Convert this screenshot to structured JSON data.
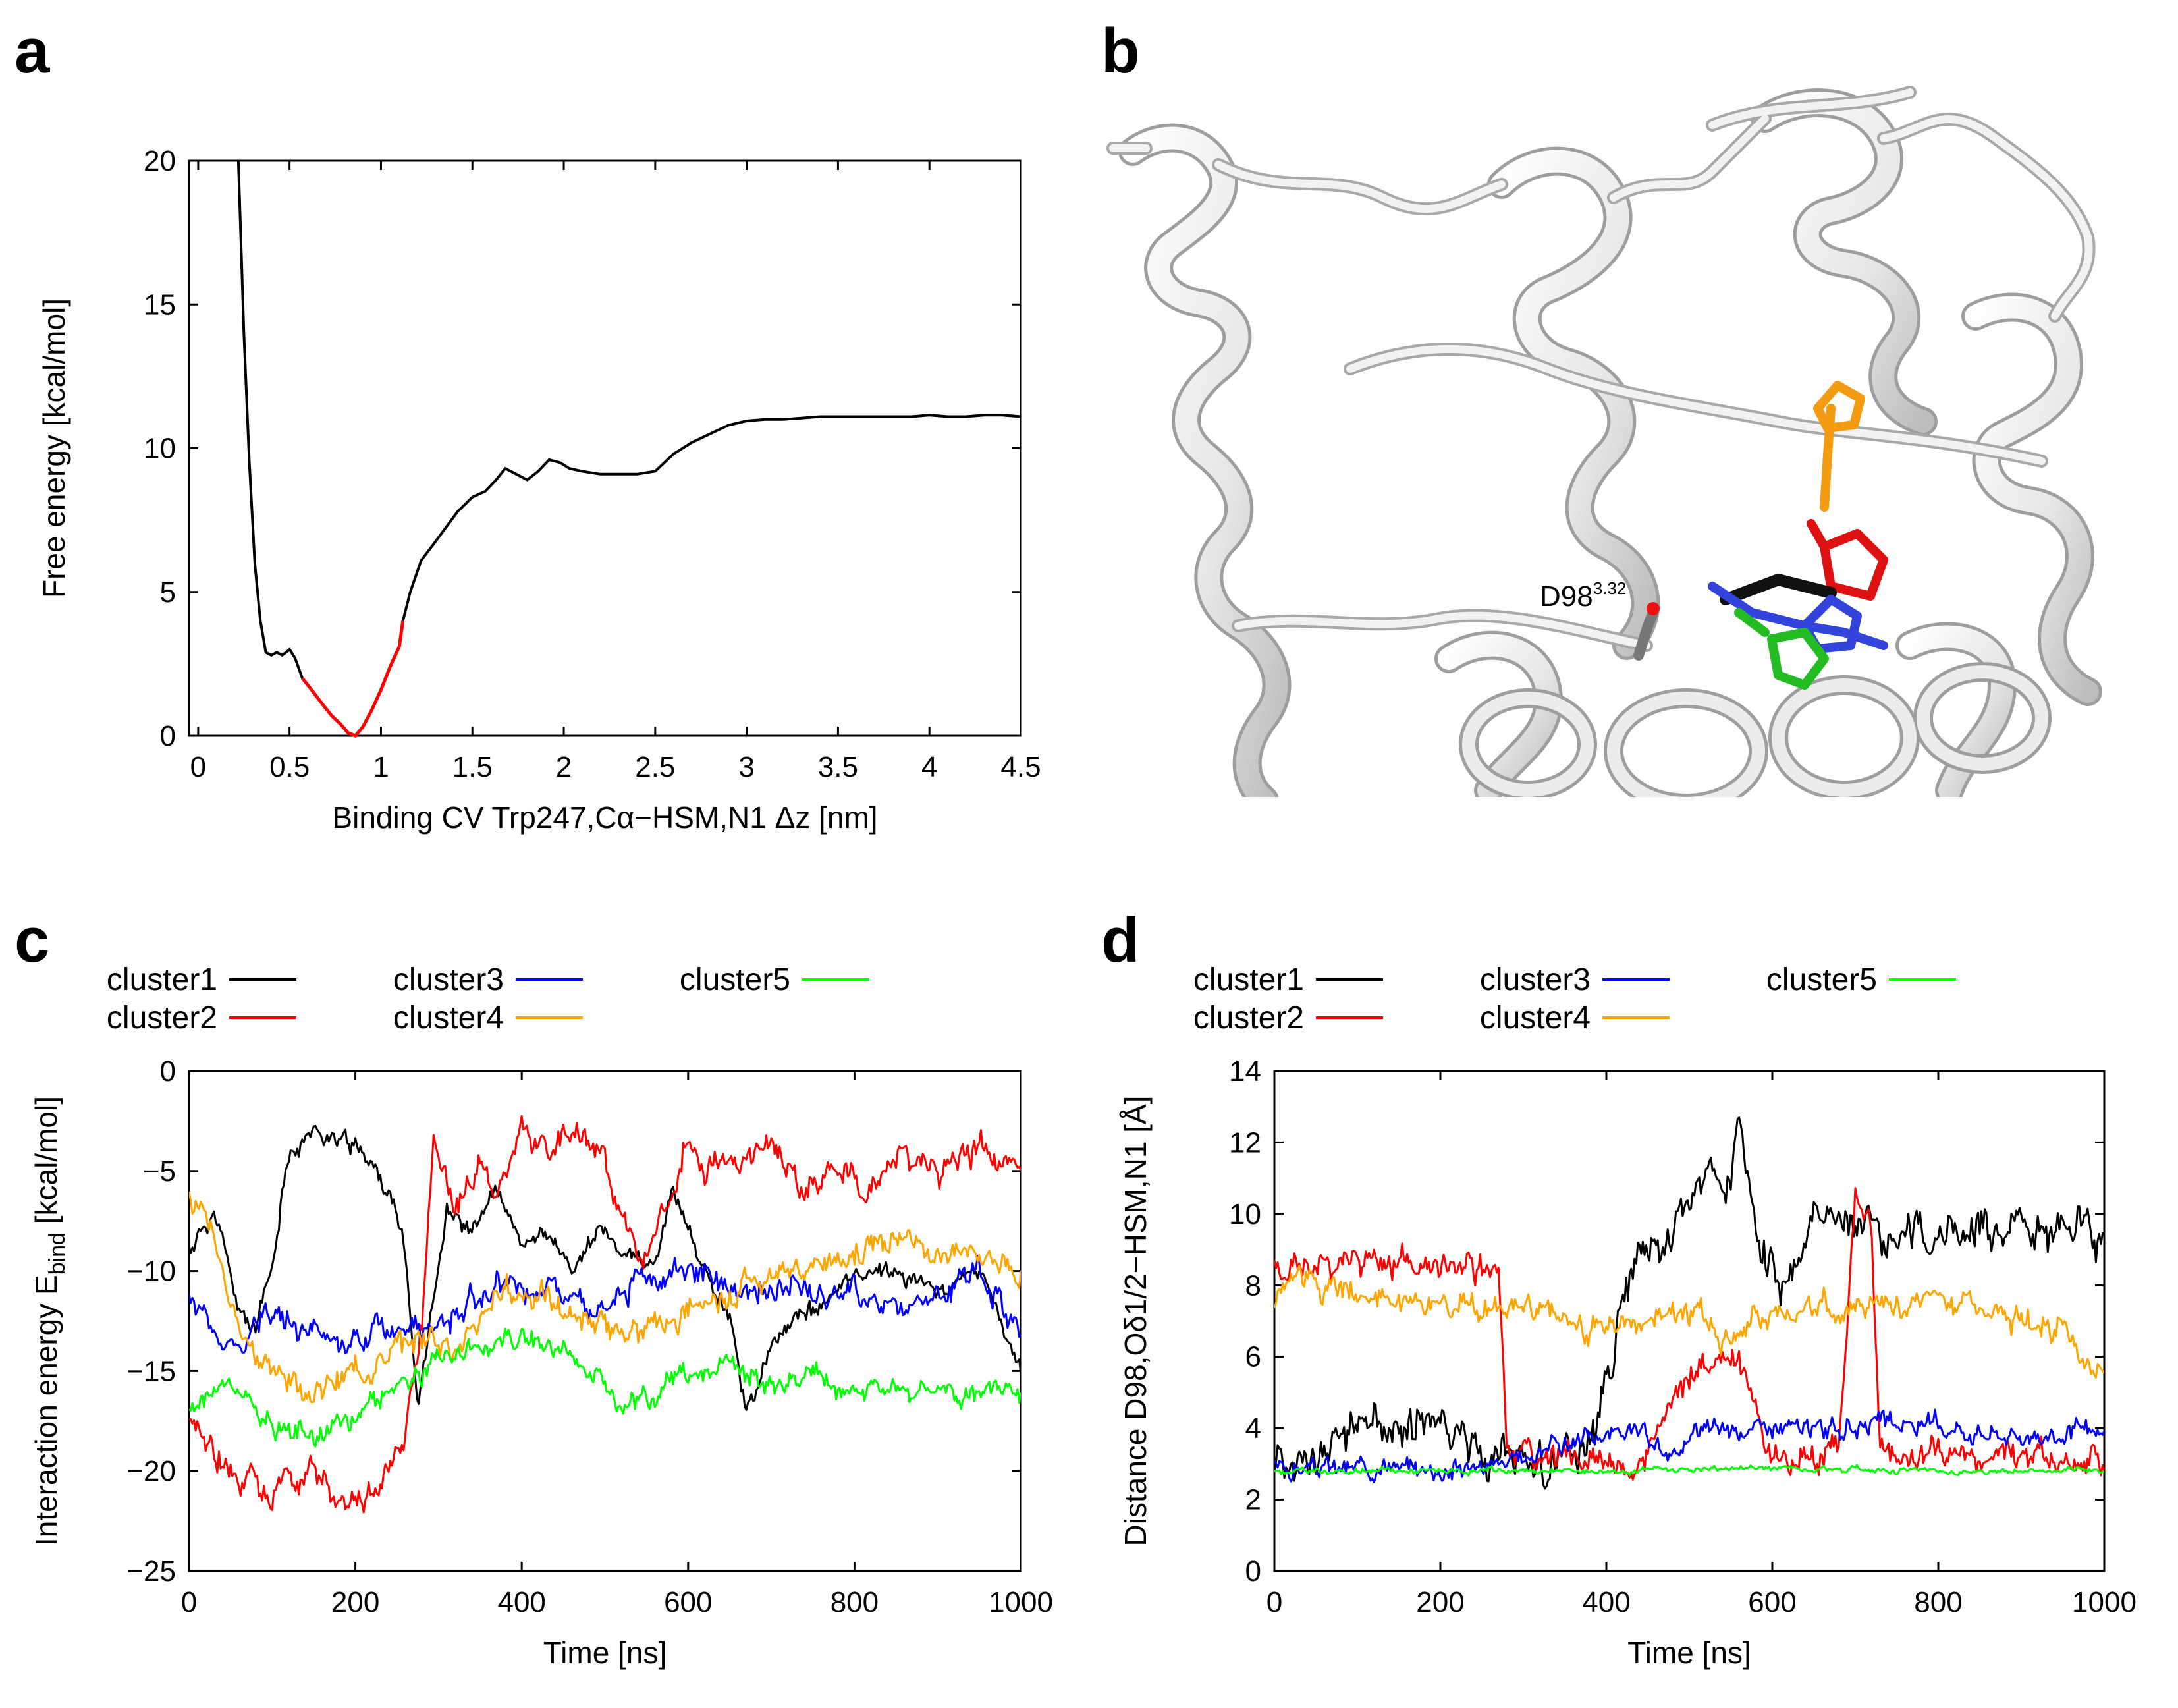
{
  "panels": {
    "a": {
      "letter": "a"
    },
    "b": {
      "letter": "b",
      "label_main": "D98",
      "label_sup": "3.32"
    },
    "c": {
      "letter": "c"
    },
    "d": {
      "letter": "d"
    }
  },
  "chart_data": [
    {
      "id": "a",
      "type": "line",
      "xlabel": "Binding CV Trp247,Cα−HSM,N1 Δz [nm]",
      "ylabel": "Free energy [kcal/mol]",
      "xlim": [
        -0.05,
        4.5
      ],
      "ylim": [
        0,
        20
      ],
      "xticks": [
        "0",
        "0.5",
        "1",
        "1.5",
        "2",
        "2.5",
        "3",
        "3.5",
        "4",
        "4.5"
      ],
      "yticks": [
        "0",
        "5",
        "10",
        "15",
        "20"
      ],
      "colors": {
        "curve": "#000000",
        "highlight": "#ff0000"
      },
      "highlight_range": [
        0.57,
        1.12
      ],
      "x": [
        0.22,
        0.25,
        0.28,
        0.31,
        0.34,
        0.37,
        0.4,
        0.43,
        0.46,
        0.5,
        0.53,
        0.57,
        0.62,
        0.68,
        0.73,
        0.78,
        0.82,
        0.86,
        0.9,
        0.95,
        1.0,
        1.05,
        1.1,
        1.12,
        1.16,
        1.22,
        1.28,
        1.35,
        1.42,
        1.5,
        1.57,
        1.63,
        1.68,
        1.74,
        1.8,
        1.86,
        1.92,
        1.98,
        2.03,
        2.1,
        2.2,
        2.3,
        2.4,
        2.5,
        2.6,
        2.7,
        2.8,
        2.9,
        3.0,
        3.1,
        3.2,
        3.3,
        3.4,
        3.5,
        3.6,
        3.7,
        3.8,
        3.9,
        4.0,
        4.1,
        4.2,
        4.3,
        4.4,
        4.5
      ],
      "y": [
        20.0,
        14.0,
        9.5,
        6.0,
        4.0,
        2.9,
        2.8,
        2.9,
        2.8,
        3.0,
        2.7,
        2.0,
        1.6,
        1.1,
        0.7,
        0.4,
        0.1,
        0.0,
        0.3,
        0.9,
        1.6,
        2.4,
        3.1,
        4.0,
        5.0,
        6.1,
        6.6,
        7.2,
        7.8,
        8.3,
        8.5,
        8.9,
        9.3,
        9.1,
        8.9,
        9.2,
        9.6,
        9.5,
        9.3,
        9.2,
        9.1,
        9.1,
        9.1,
        9.2,
        9.8,
        10.2,
        10.5,
        10.8,
        10.95,
        11.0,
        11.0,
        11.05,
        11.1,
        11.1,
        11.1,
        11.1,
        11.1,
        11.1,
        11.15,
        11.1,
        11.1,
        11.15,
        11.15,
        11.1
      ]
    },
    {
      "id": "c",
      "type": "line",
      "xlabel": "Time [ns]",
      "ylabel": "Interaction energy E",
      "ylabel_sub": "bind",
      "ylabel_unit": " [kcal/mol]",
      "xlim": [
        0,
        1000
      ],
      "ylim": [
        -25,
        0
      ],
      "xticks": [
        "0",
        "200",
        "400",
        "600",
        "800",
        "1000"
      ],
      "yticks": [
        "−25",
        "−20",
        "−15",
        "−10",
        "−5",
        "0"
      ],
      "series": [
        {
          "name": "cluster1",
          "color": "#000000",
          "points": [
            [
              0,
              -9
            ],
            [
              30,
              -7
            ],
            [
              60,
              -12
            ],
            [
              80,
              -13
            ],
            [
              100,
              -10
            ],
            [
              120,
              -4
            ],
            [
              150,
              -3
            ],
            [
              180,
              -3.5
            ],
            [
              210,
              -4
            ],
            [
              240,
              -6
            ],
            [
              260,
              -9
            ],
            [
              275,
              -17
            ],
            [
              290,
              -12
            ],
            [
              310,
              -7
            ],
            [
              340,
              -8
            ],
            [
              370,
              -6
            ],
            [
              400,
              -9
            ],
            [
              430,
              -8
            ],
            [
              460,
              -10
            ],
            [
              490,
              -8
            ],
            [
              520,
              -9
            ],
            [
              560,
              -10
            ],
            [
              580,
              -6
            ],
            [
              600,
              -8
            ],
            [
              620,
              -10
            ],
            [
              650,
              -12
            ],
            [
              670,
              -17
            ],
            [
              700,
              -14
            ],
            [
              730,
              -12
            ],
            [
              760,
              -12
            ],
            [
              800,
              -10
            ],
            [
              850,
              -10
            ],
            [
              900,
              -11
            ],
            [
              950,
              -10
            ],
            [
              1000,
              -15
            ]
          ]
        },
        {
          "name": "cluster2",
          "color": "#ff0000",
          "points": [
            [
              0,
              -18
            ],
            [
              50,
              -20
            ],
            [
              100,
              -21
            ],
            [
              150,
              -20
            ],
            [
              190,
              -22
            ],
            [
              230,
              -21
            ],
            [
              260,
              -18
            ],
            [
              280,
              -13
            ],
            [
              295,
              -3
            ],
            [
              320,
              -7
            ],
            [
              350,
              -5
            ],
            [
              380,
              -6
            ],
            [
              400,
              -3
            ],
            [
              430,
              -4
            ],
            [
              460,
              -3
            ],
            [
              490,
              -4
            ],
            [
              520,
              -8
            ],
            [
              550,
              -9
            ],
            [
              580,
              -6
            ],
            [
              600,
              -3
            ],
            [
              620,
              -5
            ],
            [
              650,
              -4
            ],
            [
              700,
              -4
            ],
            [
              740,
              -6
            ],
            [
              780,
              -5
            ],
            [
              820,
              -6
            ],
            [
              860,
              -4
            ],
            [
              900,
              -5
            ],
            [
              950,
              -4
            ],
            [
              1000,
              -5
            ]
          ]
        },
        {
          "name": "cluster3",
          "color": "#0000ff",
          "points": [
            [
              0,
              -11
            ],
            [
              30,
              -13
            ],
            [
              60,
              -14
            ],
            [
              100,
              -12
            ],
            [
              140,
              -13
            ],
            [
              180,
              -14
            ],
            [
              220,
              -13
            ],
            [
              260,
              -13
            ],
            [
              290,
              -13
            ],
            [
              320,
              -12
            ],
            [
              360,
              -11
            ],
            [
              400,
              -11
            ],
            [
              450,
              -11
            ],
            [
              500,
              -12
            ],
            [
              550,
              -10
            ],
            [
              600,
              -10
            ],
            [
              650,
              -11
            ],
            [
              700,
              -11
            ],
            [
              750,
              -11
            ],
            [
              800,
              -11
            ],
            [
              850,
              -12
            ],
            [
              900,
              -11
            ],
            [
              950,
              -10
            ],
            [
              1000,
              -13
            ]
          ]
        },
        {
          "name": "cluster4",
          "color": "#ffa500",
          "points": [
            [
              0,
              -6
            ],
            [
              30,
              -8
            ],
            [
              60,
              -13
            ],
            [
              100,
              -15
            ],
            [
              150,
              -16
            ],
            [
              200,
              -15
            ],
            [
              250,
              -14
            ],
            [
              290,
              -13
            ],
            [
              330,
              -14
            ],
            [
              370,
              -11
            ],
            [
              410,
              -11
            ],
            [
              450,
              -12
            ],
            [
              500,
              -13
            ],
            [
              550,
              -13
            ],
            [
              600,
              -12
            ],
            [
              650,
              -11
            ],
            [
              700,
              -10
            ],
            [
              750,
              -10
            ],
            [
              800,
              -9
            ],
            [
              850,
              -8
            ],
            [
              900,
              -9
            ],
            [
              950,
              -9
            ],
            [
              1000,
              -10
            ]
          ]
        },
        {
          "name": "cluster5",
          "color": "#00ff00",
          "points": [
            [
              0,
              -17
            ],
            [
              40,
              -16
            ],
            [
              80,
              -17
            ],
            [
              120,
              -18
            ],
            [
              160,
              -18
            ],
            [
              200,
              -17
            ],
            [
              240,
              -16
            ],
            [
              280,
              -15
            ],
            [
              320,
              -14
            ],
            [
              360,
              -14
            ],
            [
              400,
              -13
            ],
            [
              440,
              -14
            ],
            [
              480,
              -15
            ],
            [
              520,
              -17
            ],
            [
              560,
              -16
            ],
            [
              600,
              -15
            ],
            [
              650,
              -15
            ],
            [
              700,
              -16
            ],
            [
              750,
              -15
            ],
            [
              800,
              -16
            ],
            [
              850,
              -16
            ],
            [
              900,
              -16
            ],
            [
              950,
              -16
            ],
            [
              1000,
              -16
            ]
          ]
        }
      ],
      "noise": [
        0.6,
        0.9,
        0.8,
        0.8,
        0.7
      ]
    },
    {
      "id": "d",
      "type": "line",
      "xlabel": "Time [ns]",
      "ylabel": "Distance D98,Oδ1/2−HSM,N1 [Å]",
      "xlim": [
        0,
        1000
      ],
      "ylim": [
        0,
        14
      ],
      "xticks": [
        "0",
        "200",
        "400",
        "600",
        "800",
        "1000"
      ],
      "yticks": [
        "0",
        "2",
        "4",
        "6",
        "8",
        "10",
        "12",
        "14"
      ],
      "series": [
        {
          "name": "cluster1",
          "color": "#000000",
          "points": [
            [
              0,
              3.2
            ],
            [
              60,
              3.2
            ],
            [
              100,
              4.2
            ],
            [
              150,
              4.0
            ],
            [
              200,
              4.2
            ],
            [
              250,
              3.4
            ],
            [
              300,
              3.0
            ],
            [
              380,
              3.0
            ],
            [
              430,
              8.5
            ],
            [
              480,
              9.5
            ],
            [
              520,
              11
            ],
            [
              550,
              11
            ],
            [
              560,
              13
            ],
            [
              580,
              9
            ],
            [
              620,
              8
            ],
            [
              650,
              9.5
            ],
            [
              700,
              10
            ],
            [
              750,
              9.5
            ],
            [
              800,
              9.5
            ],
            [
              850,
              9.5
            ],
            [
              900,
              9.5
            ],
            [
              950,
              9.5
            ],
            [
              1000,
              9.5
            ]
          ]
        },
        {
          "name": "cluster2",
          "color": "#ff0000",
          "points": [
            [
              0,
              8.5
            ],
            [
              50,
              8.5
            ],
            [
              100,
              8.7
            ],
            [
              150,
              8.5
            ],
            [
              200,
              8.6
            ],
            [
              250,
              8.5
            ],
            [
              270,
              8.5
            ],
            [
              280,
              3.5
            ],
            [
              320,
              3.2
            ],
            [
              380,
              3.2
            ],
            [
              440,
              3.0
            ],
            [
              510,
              5.5
            ],
            [
              560,
              6.0
            ],
            [
              600,
              3.2
            ],
            [
              650,
              3.2
            ],
            [
              680,
              3.5
            ],
            [
              700,
              10.5
            ],
            [
              720,
              9.5
            ],
            [
              730,
              3.2
            ],
            [
              800,
              3.2
            ],
            [
              900,
              3.2
            ],
            [
              1000,
              3.0
            ]
          ]
        },
        {
          "name": "cluster3",
          "color": "#0000ff",
          "points": [
            [
              0,
              2.9
            ],
            [
              100,
              2.9
            ],
            [
              200,
              2.9
            ],
            [
              280,
              3.0
            ],
            [
              330,
              3.5
            ],
            [
              380,
              3.8
            ],
            [
              440,
              3.8
            ],
            [
              480,
              3.2
            ],
            [
              520,
              4.0
            ],
            [
              600,
              4.0
            ],
            [
              700,
              4.0
            ],
            [
              800,
              4.1
            ],
            [
              900,
              3.8
            ],
            [
              1000,
              3.8
            ]
          ]
        },
        {
          "name": "cluster4",
          "color": "#ffa500",
          "points": [
            [
              0,
              7.5
            ],
            [
              20,
              8.5
            ],
            [
              50,
              8.0
            ],
            [
              100,
              7.5
            ],
            [
              200,
              7.5
            ],
            [
              300,
              7.3
            ],
            [
              400,
              6.8
            ],
            [
              500,
              7.2
            ],
            [
              550,
              6.5
            ],
            [
              600,
              7.2
            ],
            [
              700,
              7.5
            ],
            [
              800,
              7.5
            ],
            [
              900,
              7.2
            ],
            [
              950,
              6.8
            ],
            [
              1000,
              5.5
            ]
          ]
        },
        {
          "name": "cluster5",
          "color": "#00ff00",
          "points": [
            [
              0,
              2.8
            ],
            [
              200,
              2.8
            ],
            [
              400,
              2.8
            ],
            [
              600,
              2.9
            ],
            [
              800,
              2.8
            ],
            [
              1000,
              2.8
            ]
          ]
        }
      ],
      "noise": [
        0.7,
        0.5,
        0.35,
        0.45,
        0.1
      ]
    }
  ]
}
